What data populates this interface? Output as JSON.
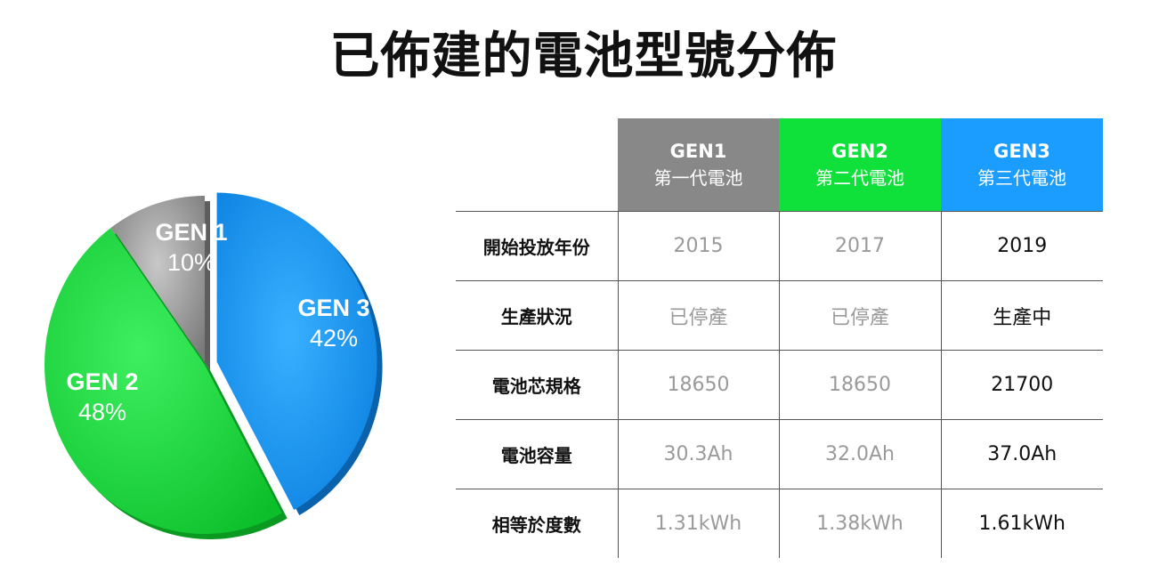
{
  "title": "已佈建的電池型號分佈",
  "chart_data": {
    "type": "pie",
    "slices": [
      {
        "label": "GEN 1",
        "value": 10,
        "value_label": "10%",
        "color": "#9a9a9a"
      },
      {
        "label": "GEN 2",
        "value": 48,
        "value_label": "48%",
        "color": "#1ee13e"
      },
      {
        "label": "GEN 3",
        "value": 42,
        "value_label": "42%",
        "color": "#1a9dff"
      }
    ],
    "exploded": "GEN 3"
  },
  "table": {
    "headers": [
      {
        "gen": "GEN1",
        "zh": "第一代電池",
        "color": "#888888"
      },
      {
        "gen": "GEN2",
        "zh": "第二代電池",
        "color": "#0fe13a"
      },
      {
        "gen": "GEN3",
        "zh": "第三代電池",
        "color": "#1a9dff"
      }
    ],
    "rows": [
      {
        "label": "開始投放年份",
        "values": [
          "2015",
          "2017",
          "2019"
        ]
      },
      {
        "label": "生產狀況",
        "values": [
          "已停產",
          "已停產",
          "生產中"
        ]
      },
      {
        "label": "電池芯規格",
        "values": [
          "18650",
          "18650",
          "21700"
        ]
      },
      {
        "label": "電池容量",
        "values": [
          "30.3Ah",
          "32.0Ah",
          "37.0Ah"
        ]
      },
      {
        "label": "相等於度數",
        "values": [
          "1.31kWh",
          "1.38kWh",
          "1.61kWh"
        ]
      }
    ]
  }
}
